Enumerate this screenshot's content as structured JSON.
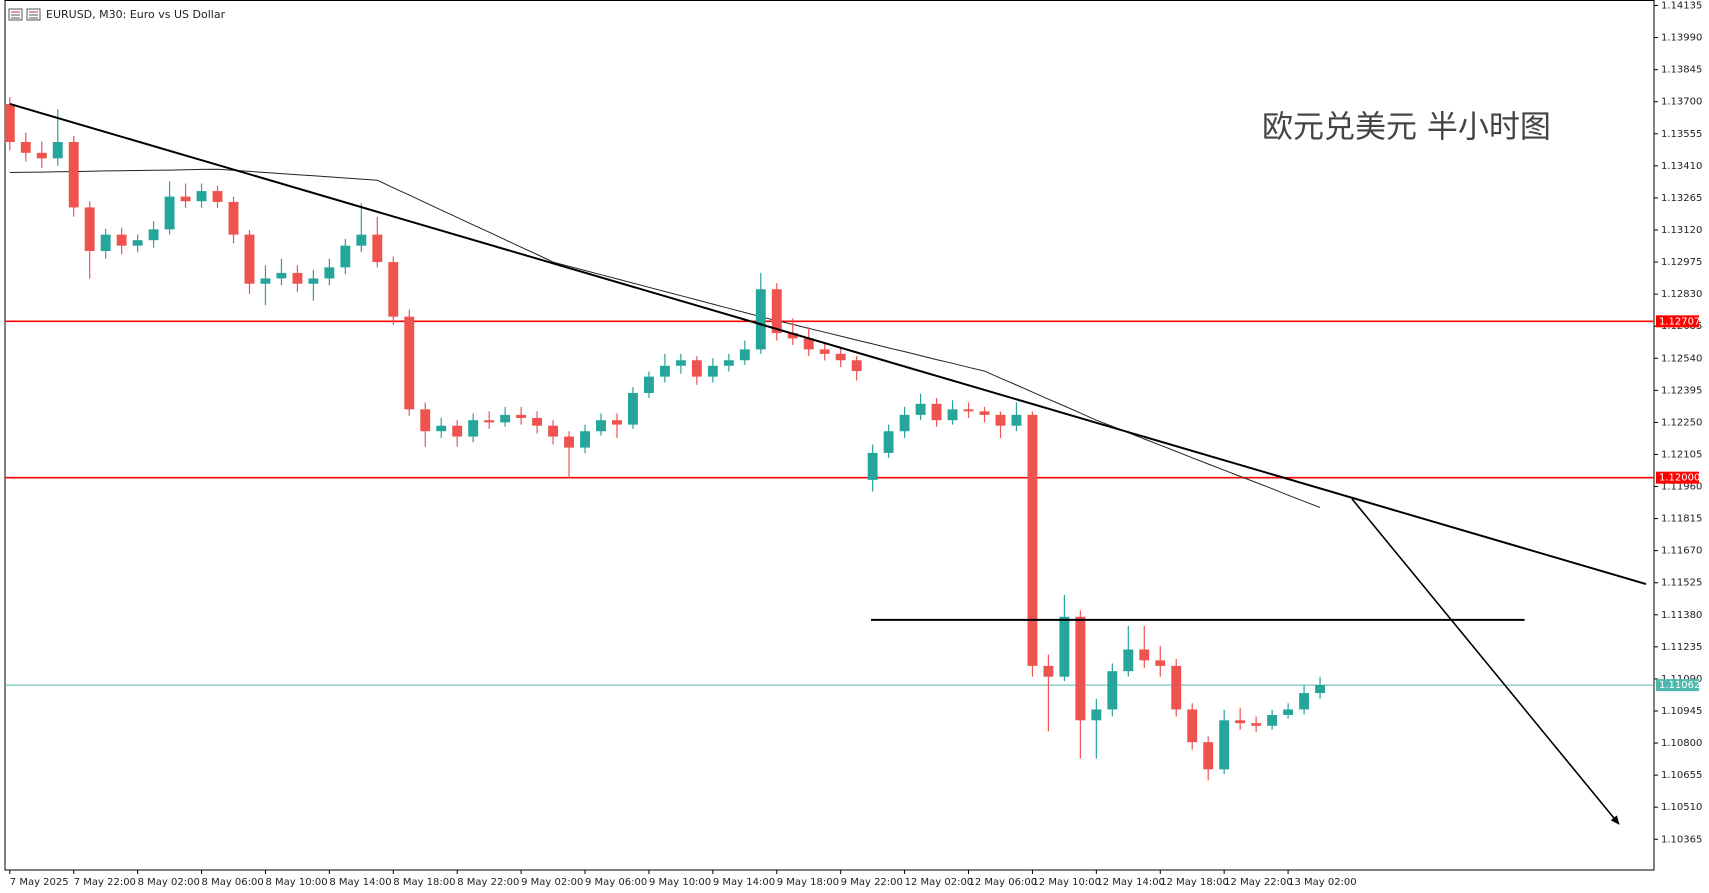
{
  "chart_data": {
    "type": "candlestick",
    "title": "EURUSD, M30:  Euro vs US Dollar",
    "annotation": "欧元兑美元 半小时图",
    "up_color": "#26a69a",
    "down_color": "#ef5350",
    "ma_color": "#222222",
    "xlim": [
      -0.3,
      102.9
    ],
    "ylim": [
      1.10226,
      1.1416
    ],
    "yticks": [
      {
        "value": 1.14135,
        "label": "1.14135"
      },
      {
        "value": 1.1399,
        "label": "1.13990"
      },
      {
        "value": 1.13845,
        "label": "1.13845"
      },
      {
        "value": 1.137,
        "label": "1.13700"
      },
      {
        "value": 1.13555,
        "label": "1.13555"
      },
      {
        "value": 1.1341,
        "label": "1.13410"
      },
      {
        "value": 1.13265,
        "label": "1.13265"
      },
      {
        "value": 1.1312,
        "label": "1.13120"
      },
      {
        "value": 1.12975,
        "label": "1.12975"
      },
      {
        "value": 1.1283,
        "label": "1.12830"
      },
      {
        "value": 1.12685,
        "label": "1.12685"
      },
      {
        "value": 1.1254,
        "label": "1.12540"
      },
      {
        "value": 1.12395,
        "label": "1.12395"
      },
      {
        "value": 1.1225,
        "label": "1.12250"
      },
      {
        "value": 1.12105,
        "label": "1.12105"
      },
      {
        "value": 1.1196,
        "label": "1.11960"
      },
      {
        "value": 1.11815,
        "label": "1.11815"
      },
      {
        "value": 1.1167,
        "label": "1.11670"
      },
      {
        "value": 1.11525,
        "label": "1.11525"
      },
      {
        "value": 1.1138,
        "label": "1.11380"
      },
      {
        "value": 1.11235,
        "label": "1.11235"
      },
      {
        "value": 1.1109,
        "label": "1.11090"
      },
      {
        "value": 1.10945,
        "label": "1.10945"
      },
      {
        "value": 1.108,
        "label": "1.10800"
      },
      {
        "value": 1.10655,
        "label": "1.10655"
      },
      {
        "value": 1.1051,
        "label": "1.10510"
      },
      {
        "value": 1.10365,
        "label": "1.10365"
      }
    ],
    "categories": [
      "7 May 2025",
      null,
      null,
      null,
      "7 May 22:00",
      null,
      null,
      null,
      "8 May 02:00",
      null,
      null,
      null,
      "8 May 06:00",
      null,
      null,
      null,
      "8 May 10:00",
      null,
      null,
      null,
      "8 May 14:00",
      null,
      null,
      null,
      "8 May 18:00",
      null,
      null,
      null,
      "8 May 22:00",
      null,
      null,
      null,
      "9 May 02:00",
      null,
      null,
      null,
      "9 May 06:00",
      null,
      null,
      null,
      "9 May 10:00",
      null,
      null,
      null,
      "9 May 14:00",
      null,
      null,
      null,
      "9 May 18:00",
      null,
      null,
      null,
      "9 May 22:00",
      null,
      null,
      null,
      "12 May 02:00",
      null,
      null,
      null,
      "12 May 06:00",
      null,
      null,
      null,
      "12 May 10:00",
      null,
      null,
      null,
      "12 May 14:00",
      null,
      null,
      null,
      "12 May 18:00",
      null,
      null,
      null,
      "12 May 22:00",
      null,
      null,
      null,
      "13 May 02:00",
      null,
      null
    ],
    "ohlc": [
      [
        1.1369,
        1.1372,
        1.1348,
        1.13518
      ],
      [
        1.13518,
        1.1356,
        1.1343,
        1.13469
      ],
      [
        1.13469,
        1.1352,
        1.134,
        1.13444
      ],
      [
        1.13444,
        1.13666,
        1.1341,
        1.13518
      ],
      [
        1.13518,
        1.13545,
        1.1318,
        1.13222
      ],
      [
        1.13222,
        1.1325,
        1.129,
        1.13025
      ],
      [
        1.13025,
        1.13125,
        1.1299,
        1.13099
      ],
      [
        1.13099,
        1.1313,
        1.1301,
        1.13049
      ],
      [
        1.13049,
        1.131,
        1.1302,
        1.13074
      ],
      [
        1.13074,
        1.1316,
        1.1304,
        1.13123
      ],
      [
        1.13123,
        1.1334,
        1.131,
        1.13271
      ],
      [
        1.13271,
        1.1333,
        1.1322,
        1.1325
      ],
      [
        1.1325,
        1.1333,
        1.1322,
        1.13296
      ],
      [
        1.13296,
        1.1332,
        1.1322,
        1.13247
      ],
      [
        1.13247,
        1.1327,
        1.1306,
        1.13099
      ],
      [
        1.13099,
        1.1312,
        1.1283,
        1.12877
      ],
      [
        1.12877,
        1.1296,
        1.1278,
        1.12901
      ],
      [
        1.12901,
        1.1299,
        1.1287,
        1.12926
      ],
      [
        1.12926,
        1.1296,
        1.1284,
        1.12877
      ],
      [
        1.12877,
        1.1294,
        1.128,
        1.12901
      ],
      [
        1.12901,
        1.1299,
        1.1287,
        1.12951
      ],
      [
        1.12951,
        1.1308,
        1.1292,
        1.13049
      ],
      [
        1.13049,
        1.1324,
        1.1302,
        1.13099
      ],
      [
        1.13099,
        1.1318,
        1.1295,
        1.12975
      ],
      [
        1.12975,
        1.13,
        1.1269,
        1.12728
      ],
      [
        1.12728,
        1.1276,
        1.1228,
        1.12309
      ],
      [
        1.12309,
        1.1234,
        1.1214,
        1.1221
      ],
      [
        1.1221,
        1.1227,
        1.1218,
        1.12235
      ],
      [
        1.12235,
        1.1226,
        1.1214,
        1.12186
      ],
      [
        1.12186,
        1.1229,
        1.1216,
        1.1226
      ],
      [
        1.1226,
        1.123,
        1.1222,
        1.1225
      ],
      [
        1.1225,
        1.1232,
        1.1223,
        1.12284
      ],
      [
        1.12284,
        1.1232,
        1.1224,
        1.1227
      ],
      [
        1.1227,
        1.123,
        1.122,
        1.12235
      ],
      [
        1.12235,
        1.1226,
        1.1215,
        1.12186
      ],
      [
        1.12186,
        1.1221,
        1.12,
        1.12136
      ],
      [
        1.12136,
        1.1224,
        1.1211,
        1.1221
      ],
      [
        1.1221,
        1.1229,
        1.1219,
        1.1226
      ],
      [
        1.1226,
        1.1229,
        1.1218,
        1.1224
      ],
      [
        1.1224,
        1.1241,
        1.1222,
        1.12383
      ],
      [
        1.12383,
        1.1248,
        1.1236,
        1.12457
      ],
      [
        1.12457,
        1.1256,
        1.1243,
        1.12506
      ],
      [
        1.12506,
        1.1256,
        1.1247,
        1.12531
      ],
      [
        1.12531,
        1.1255,
        1.1242,
        1.12457
      ],
      [
        1.12457,
        1.1254,
        1.1243,
        1.12506
      ],
      [
        1.12506,
        1.1256,
        1.1248,
        1.12531
      ],
      [
        1.12531,
        1.1262,
        1.1251,
        1.1258
      ],
      [
        1.1258,
        1.12926,
        1.1256,
        1.12852
      ],
      [
        1.12852,
        1.1288,
        1.1262,
        1.12654
      ],
      [
        1.12654,
        1.1272,
        1.126,
        1.1263
      ],
      [
        1.1263,
        1.1268,
        1.1255,
        1.1258
      ],
      [
        1.1258,
        1.1261,
        1.1253,
        1.1256
      ],
      [
        1.1256,
        1.1259,
        1.125,
        1.12531
      ],
      [
        1.12531,
        1.1255,
        1.1244,
        1.12482
      ],
      [
        1.1199,
        1.1215,
        1.11937,
        1.12112
      ],
      [
        1.12112,
        1.1224,
        1.1209,
        1.1221
      ],
      [
        1.1221,
        1.1232,
        1.1218,
        1.12284
      ],
      [
        1.12284,
        1.1238,
        1.1226,
        1.12334
      ],
      [
        1.12334,
        1.1236,
        1.1223,
        1.1226
      ],
      [
        1.1226,
        1.1235,
        1.1224,
        1.12309
      ],
      [
        1.12309,
        1.1234,
        1.1227,
        1.123
      ],
      [
        1.123,
        1.1232,
        1.1225,
        1.12284
      ],
      [
        1.12284,
        1.123,
        1.1218,
        1.12235
      ],
      [
        1.12235,
        1.1234,
        1.1221,
        1.12284
      ],
      [
        1.12284,
        1.123,
        1.111,
        1.11149
      ],
      [
        1.11149,
        1.112,
        1.10853,
        1.111
      ],
      [
        1.111,
        1.1147,
        1.1108,
        1.11371
      ],
      [
        1.11371,
        1.114,
        1.1073,
        1.10903
      ],
      [
        1.10903,
        1.11,
        1.1073,
        1.10952
      ],
      [
        1.10952,
        1.1116,
        1.1092,
        1.11125
      ],
      [
        1.11125,
        1.1133,
        1.111,
        1.11223
      ],
      [
        1.11223,
        1.1133,
        1.1114,
        1.11174
      ],
      [
        1.11174,
        1.1124,
        1.111,
        1.11149
      ],
      [
        1.11149,
        1.1118,
        1.1092,
        1.10952
      ],
      [
        1.10952,
        1.1098,
        1.1077,
        1.10804
      ],
      [
        1.10804,
        1.1083,
        1.10631,
        1.10681
      ],
      [
        1.10681,
        1.1095,
        1.1066,
        1.10903
      ],
      [
        1.10903,
        1.1096,
        1.1086,
        1.1089
      ],
      [
        1.1089,
        1.1092,
        1.1085,
        1.10878
      ],
      [
        1.10878,
        1.1095,
        1.1086,
        1.10927
      ],
      [
        1.10927,
        1.1098,
        1.1091,
        1.10952
      ],
      [
        1.10952,
        1.1106,
        1.1093,
        1.11026
      ],
      [
        1.11026,
        1.111,
        1.11,
        1.11062
      ]
    ],
    "ma_values": [
      1.1338,
      1.13381,
      1.13382,
      1.13383,
      1.13384,
      1.13386,
      1.13387,
      1.13388,
      1.13389,
      1.1339,
      1.13391,
      1.13392,
      1.13394,
      1.13395,
      1.1339,
      1.13385,
      1.1338,
      1.13375,
      1.1337,
      1.13365,
      1.1336,
      1.13355,
      1.1335,
      1.13345,
      1.13311,
      1.13278,
      1.13244,
      1.1321,
      1.13177,
      1.13143,
      1.1311,
      1.13076,
      1.13042,
      1.13009,
      1.12975,
      1.12956,
      1.12937,
      1.12918,
      1.12899,
      1.1288,
      1.12861,
      1.12842,
      1.12823,
      1.12804,
      1.12785,
      1.12766,
      1.12747,
      1.12728,
      1.1271,
      1.12693,
      1.12675,
      1.12658,
      1.1264,
      1.12622,
      1.12605,
      1.12587,
      1.1257,
      1.12552,
      1.12534,
      1.12517,
      1.12499,
      1.12482,
      1.1245,
      1.12419,
      1.12387,
      1.12355,
      1.12324,
      1.12292,
      1.1226,
      1.12232,
      1.12204,
      1.12175,
      1.12147,
      1.12119,
      1.1209,
      1.12062,
      1.12034,
      1.12006,
      1.11978,
      1.1195,
      1.11921,
      1.11893,
      1.11865
    ],
    "levels": [
      {
        "value": 1.12707,
        "label": "1.12707",
        "color": "#ff0000"
      },
      {
        "value": 1.12,
        "label": "1.12000",
        "color": "#ff0000"
      },
      {
        "value": 1.11062,
        "label": "1.11062",
        "color": "#4fb8ad"
      }
    ],
    "drawings": [
      {
        "start": [
          0,
          1.1369
        ],
        "end": [
          102.4,
          1.11519
        ],
        "color": "#000000",
        "width": 2,
        "arrow": false
      },
      {
        "start": [
          53.9,
          1.11357
        ],
        "end": [
          94.8,
          1.11357
        ],
        "color": "#000000",
        "width": 2,
        "arrow": false
      },
      {
        "start": [
          84.0,
          1.11904
        ],
        "end": [
          100.7,
          1.10434
        ],
        "color": "#000000",
        "width": 1.6,
        "arrow": true
      }
    ]
  }
}
